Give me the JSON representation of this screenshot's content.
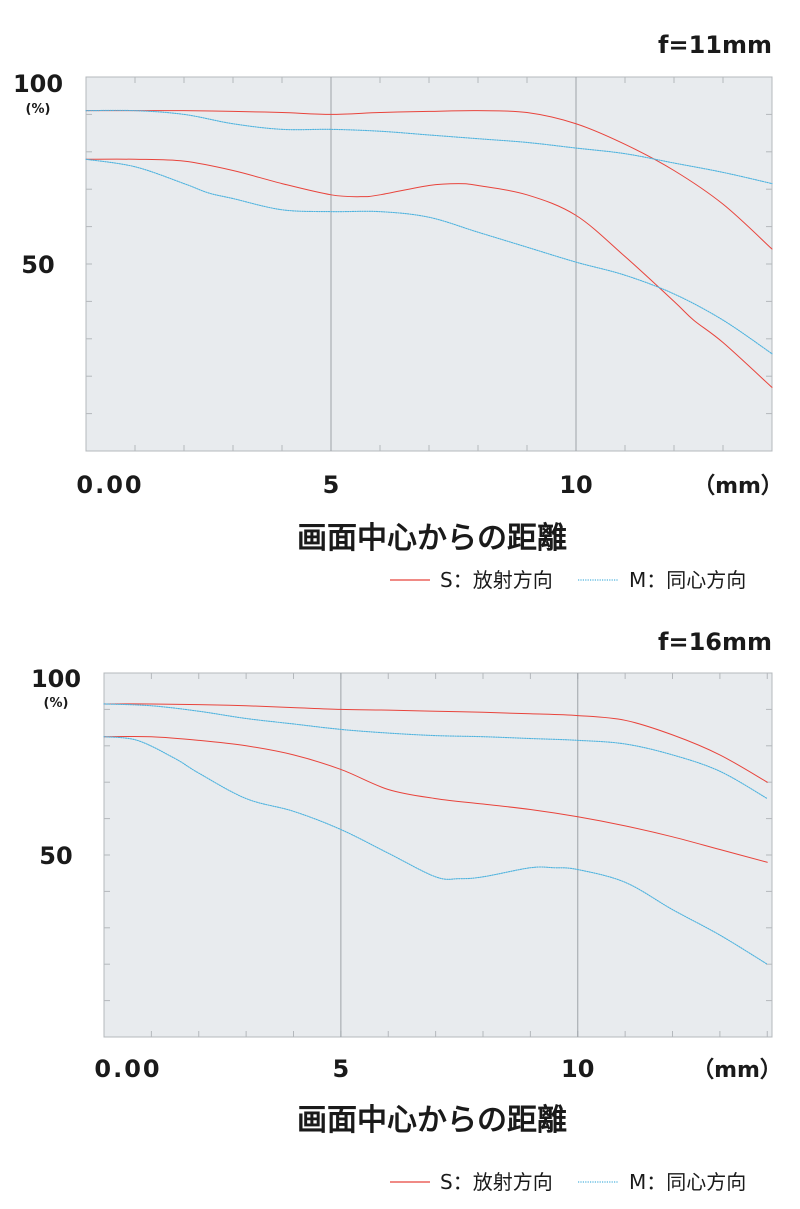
{
  "colors": {
    "sagittal": "#e8443c",
    "meridional": "#4fb3de",
    "plot_bg": "#e8ebee",
    "frame": "#b4b8bc",
    "center_line": "#9ea3a8",
    "text": "#1a1a1a"
  },
  "chart_data": [
    {
      "type": "line",
      "title": "f=11mm",
      "ylabel_top": "100",
      "ylabel_unit": "(%)",
      "xlabel": "画面中心からの距離",
      "x_unit": "（mm）",
      "xlim": [
        0,
        14
      ],
      "ylim": [
        0,
        100
      ],
      "x_tick_labels": [
        {
          "x": 0,
          "label": "0.00"
        },
        {
          "x": 5,
          "label": "5"
        },
        {
          "x": 10,
          "label": "10"
        }
      ],
      "y_tick_labels": [
        {
          "y": 50,
          "label": "50"
        }
      ],
      "legend_position": "below",
      "series": [
        {
          "name": "S：放射方向",
          "color_key": "sagittal",
          "style": "solid",
          "x": [
            0,
            1,
            2,
            3,
            4,
            5,
            6,
            7,
            8,
            9,
            10,
            11,
            12,
            13,
            14
          ],
          "y": [
            91,
            91,
            91,
            90.8,
            90.5,
            90,
            90.5,
            90.8,
            91,
            90.5,
            87.5,
            82,
            75,
            66,
            54
          ]
        },
        {
          "name": "S：放射方向",
          "color_key": "sagittal",
          "style": "solid",
          "x": [
            0,
            1,
            2,
            3,
            4,
            5,
            5.6,
            6,
            7,
            7.6,
            8,
            9,
            10,
            11,
            12,
            12.4,
            13,
            14
          ],
          "y": [
            78,
            78,
            77.5,
            75,
            71.5,
            68.5,
            68,
            68.5,
            71,
            71.5,
            71,
            68.5,
            63,
            52,
            40,
            35,
            29,
            17
          ]
        },
        {
          "name": "M：同心方向",
          "color_key": "meridional",
          "style": "dotted",
          "x": [
            0,
            1,
            2,
            3,
            4,
            5,
            6,
            7,
            8,
            9,
            10,
            11,
            12,
            13,
            14
          ],
          "y": [
            91,
            91,
            90,
            87.5,
            86,
            86,
            85.5,
            84.5,
            83.5,
            82.5,
            81,
            79.5,
            77,
            74.5,
            71.5
          ]
        },
        {
          "name": "M：同心方向",
          "color_key": "meridional",
          "style": "dotted",
          "x": [
            0,
            1,
            2,
            2.5,
            3,
            4,
            5,
            6,
            7,
            8,
            9,
            10,
            11,
            12,
            13,
            14
          ],
          "y": [
            78,
            76,
            71.5,
            69,
            67.5,
            64.5,
            64,
            64,
            62.5,
            58.5,
            54.5,
            50.5,
            47,
            42,
            35,
            26
          ]
        }
      ],
      "legend": [
        {
          "label": "S：放射方向",
          "color_key": "sagittal"
        },
        {
          "label": "M：同心方向",
          "color_key": "meridional"
        }
      ]
    },
    {
      "type": "line",
      "title": "f=16mm",
      "ylabel_top": "100",
      "ylabel_unit": "(%)",
      "xlabel": "画面中心からの距離",
      "x_unit": "（mm）",
      "xlim": [
        0,
        14
      ],
      "ylim": [
        0,
        100
      ],
      "x_tick_labels": [
        {
          "x": 0,
          "label": "0.00"
        },
        {
          "x": 5,
          "label": "5"
        },
        {
          "x": 10,
          "label": "10"
        }
      ],
      "y_tick_labels": [
        {
          "y": 50,
          "label": "50"
        }
      ],
      "legend_position": "below",
      "series": [
        {
          "name": "S：放射方向",
          "color_key": "sagittal",
          "style": "solid",
          "x": [
            0,
            1,
            2,
            3,
            4,
            5,
            6,
            7,
            8,
            9,
            10,
            11,
            12,
            13,
            14
          ],
          "y": [
            91.5,
            91.5,
            91.3,
            91,
            90.5,
            90,
            89.8,
            89.5,
            89.2,
            88.8,
            88.3,
            87,
            83,
            77.5,
            70
          ]
        },
        {
          "name": "S：放射方向",
          "color_key": "sagittal",
          "style": "solid",
          "x": [
            0,
            1,
            2,
            3,
            4,
            5,
            6,
            7,
            8,
            9,
            10,
            11,
            12,
            13,
            14
          ],
          "y": [
            82.5,
            82.5,
            81.5,
            80,
            77.5,
            73.5,
            68,
            65.5,
            64,
            62.5,
            60.5,
            58,
            55,
            51.5,
            48
          ]
        },
        {
          "name": "M：同心方向",
          "color_key": "meridional",
          "style": "dotted",
          "x": [
            0,
            1,
            2,
            3,
            4,
            5,
            6,
            7,
            8,
            9,
            10,
            11,
            12,
            13,
            14
          ],
          "y": [
            91.5,
            91,
            89.5,
            87.5,
            86,
            84.5,
            83.5,
            82.8,
            82.5,
            82,
            81.5,
            80.5,
            77.5,
            73,
            65.5
          ]
        },
        {
          "name": "M：同心方向",
          "color_key": "meridional",
          "style": "dotted",
          "x": [
            0,
            0.7,
            1.5,
            2,
            3,
            4,
            5,
            6,
            7,
            7.5,
            8,
            9,
            9.5,
            10,
            11,
            12,
            13,
            14
          ],
          "y": [
            82.5,
            81.5,
            76.5,
            72.5,
            65.5,
            62,
            57,
            50.5,
            44,
            43.5,
            44,
            46.5,
            46.5,
            46,
            42.5,
            35,
            28,
            20
          ]
        }
      ],
      "legend": [
        {
          "label": "S：放射方向",
          "color_key": "sagittal"
        },
        {
          "label": "M：同心方向",
          "color_key": "meridional"
        }
      ]
    }
  ]
}
